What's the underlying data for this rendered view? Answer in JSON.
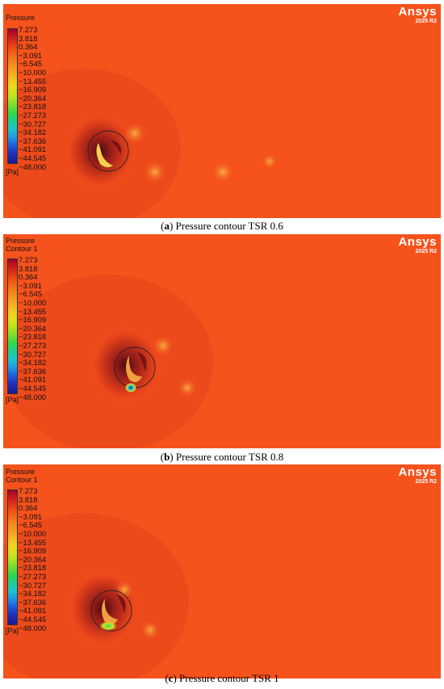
{
  "legend": {
    "ticks": [
      "7.273",
      "3.818",
      "0.364",
      "−3.091",
      "−6.545",
      "−10.000",
      "−13.455",
      "−16.909",
      "−20.364",
      "−23.818",
      "−27.273",
      "−30.727",
      "−34.182",
      "−37.636",
      "−41.091",
      "−44.545",
      "−48.000"
    ],
    "unit": "[Pa]"
  },
  "brand": {
    "name": "Ansys",
    "version": "2025 R2"
  },
  "colors": {
    "field": "#f5521c",
    "wake": "#bb2418",
    "highlight": "#f7a43a"
  },
  "panels": [
    {
      "legend_title": [
        "Pressure"
      ],
      "caption_letter": "a",
      "caption_text": " Pressure contour TSR 0.6"
    },
    {
      "legend_title": [
        "Pressure",
        "Contour 1"
      ],
      "caption_letter": "b",
      "caption_text": " Pressure contour TSR 0.8"
    },
    {
      "legend_title": [
        "Pressure",
        "Contour 1"
      ],
      "caption_letter": "c",
      "caption_text": " Pressure contour TSR 1"
    }
  ]
}
